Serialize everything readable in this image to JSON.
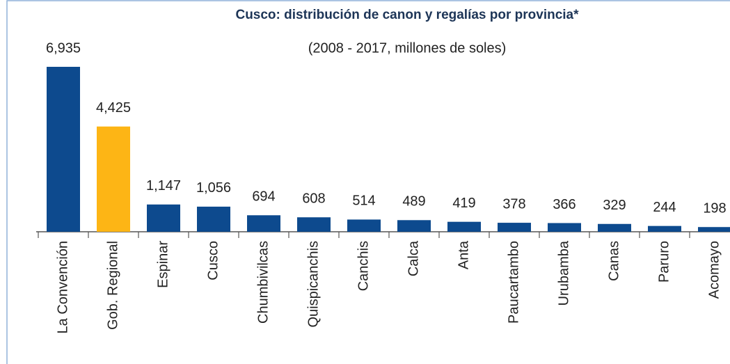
{
  "chart_data": {
    "type": "bar",
    "title": "Cusco: distribución de canon y regalías por provincia*",
    "subtitle": "(2008 - 2017, millones de soles)",
    "categories": [
      "La Convención",
      "Gob. Regional",
      "Espinar",
      "Cusco",
      "Chumbivilcas",
      "Quispicanchis",
      "Canchis",
      "Calca",
      "Anta",
      "Paucartambo",
      "Urubamba",
      "Canas",
      "Paruro",
      "Acomayo"
    ],
    "values": [
      6935,
      4425,
      1147,
      1056,
      694,
      608,
      514,
      489,
      419,
      378,
      366,
      329,
      244,
      198
    ],
    "value_labels": [
      "6,935",
      "4,425",
      "1,147",
      "1,056",
      "694",
      "608",
      "514",
      "489",
      "419",
      "378",
      "366",
      "329",
      "244",
      "198"
    ],
    "colors": [
      "#0d4a8e",
      "#fdb515",
      "#0d4a8e",
      "#0d4a8e",
      "#0d4a8e",
      "#0d4a8e",
      "#0d4a8e",
      "#0d4a8e",
      "#0d4a8e",
      "#0d4a8e",
      "#0d4a8e",
      "#0d4a8e",
      "#0d4a8e",
      "#0d4a8e"
    ]
  }
}
